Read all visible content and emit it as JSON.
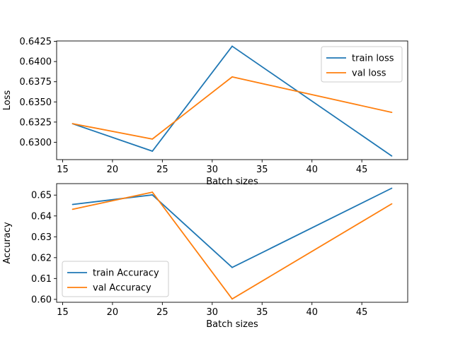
{
  "chart_data": [
    {
      "type": "line",
      "xlabel": "Batch sizes",
      "ylabel": "Loss",
      "x": [
        16,
        24,
        32,
        48
      ],
      "xlim": [
        14.4,
        49.6
      ],
      "ylim": [
        0.62785,
        0.64255
      ],
      "xticks": [
        15,
        20,
        25,
        30,
        35,
        40,
        45
      ],
      "yticks": [
        0.63,
        0.6325,
        0.635,
        0.6375,
        0.64,
        0.6425
      ],
      "ytick_decimals": 4,
      "legend_loc": "upper right",
      "grid": false,
      "series": [
        {
          "name": "train loss",
          "color": "#1f77b4",
          "values": [
            0.6323,
            0.6289,
            0.6419,
            0.6283
          ]
        },
        {
          "name": "val loss",
          "color": "#ff7f0e",
          "values": [
            0.6323,
            0.6304,
            0.6381,
            0.6337
          ]
        }
      ]
    },
    {
      "type": "line",
      "xlabel": "Batch sizes",
      "ylabel": "Accuracy",
      "x": [
        16,
        24,
        32,
        48
      ],
      "xlim": [
        14.4,
        49.6
      ],
      "ylim": [
        0.5986,
        0.6555
      ],
      "xticks": [
        15,
        20,
        25,
        30,
        35,
        40,
        45
      ],
      "yticks": [
        0.6,
        0.61,
        0.62,
        0.63,
        0.64,
        0.65
      ],
      "ytick_decimals": 2,
      "legend_loc": "lower left",
      "grid": false,
      "series": [
        {
          "name": "train Accuracy",
          "color": "#1f77b4",
          "values": [
            0.6455,
            0.6501,
            0.6153,
            0.6533
          ]
        },
        {
          "name": "val Accuracy",
          "color": "#ff7f0e",
          "values": [
            0.6432,
            0.6514,
            0.6002,
            0.6458
          ]
        }
      ]
    }
  ]
}
